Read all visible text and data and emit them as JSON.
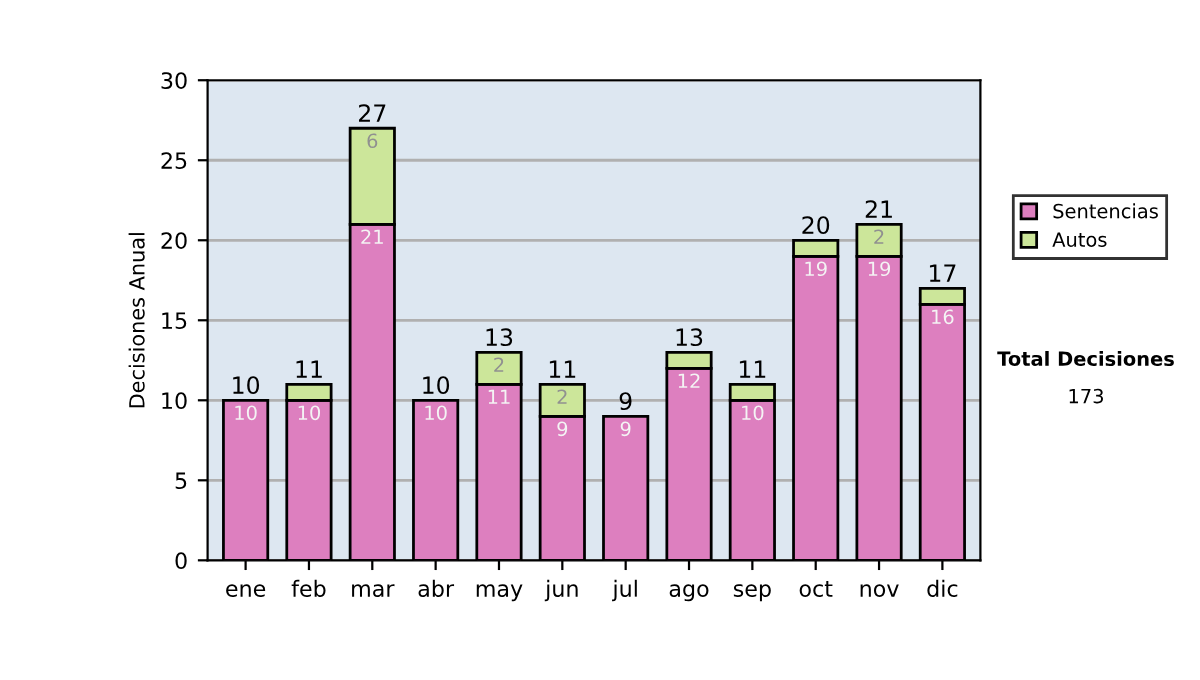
{
  "chart_data": {
    "type": "bar",
    "stacked": true,
    "ylabel": "Decisiones Anual",
    "categories": [
      "ene",
      "feb",
      "mar",
      "abr",
      "may",
      "jun",
      "jul",
      "ago",
      "sep",
      "oct",
      "nov",
      "dic"
    ],
    "series": [
      {
        "name": "Sentencias",
        "color": "#dd7fbf",
        "values": [
          10,
          10,
          21,
          10,
          11,
          9,
          9,
          12,
          10,
          19,
          19,
          16
        ],
        "value_labels": [
          "10",
          "10",
          "21",
          "10",
          "11",
          "9",
          "9",
          "12",
          "10",
          "19",
          "19",
          "16"
        ]
      },
      {
        "name": "Autos",
        "color": "#cce69a",
        "values": [
          null,
          1,
          6,
          null,
          2,
          2,
          null,
          1,
          1,
          1,
          2,
          1
        ],
        "value_labels": [
          null,
          null,
          "6",
          null,
          "2",
          "2",
          null,
          null,
          null,
          null,
          "2",
          null
        ]
      }
    ],
    "totals": [
      "10",
      "11",
      "27",
      "10",
      "13",
      "11",
      "9",
      "13",
      "11",
      "20",
      "21",
      "17"
    ],
    "ylim": [
      0,
      30
    ],
    "yticks": [
      0,
      5,
      10,
      15,
      20,
      25,
      30
    ],
    "grid": "y",
    "legend": "right",
    "annotations": [
      "Total Decisiones",
      "173"
    ]
  }
}
